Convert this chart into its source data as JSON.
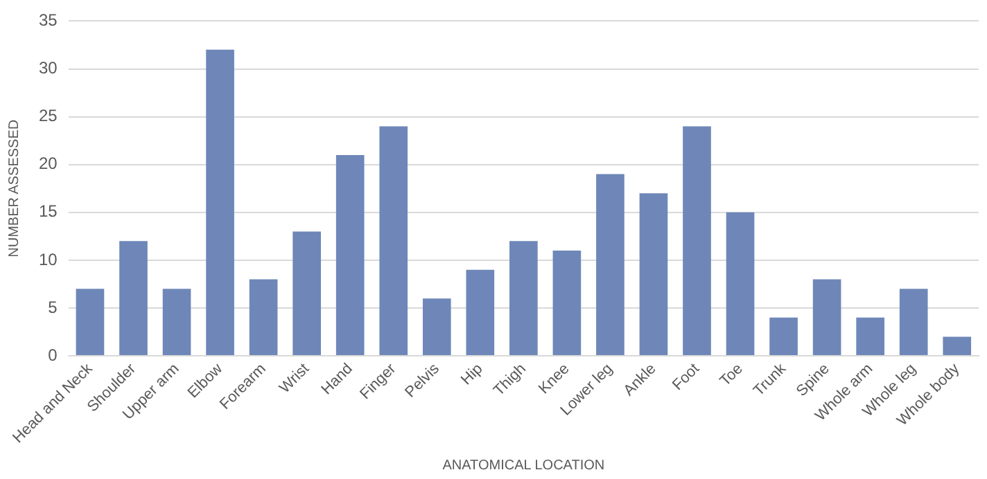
{
  "chart_data": {
    "type": "bar",
    "xlabel": "ANATOMICAL LOCATION",
    "ylabel": "NUMBER ASSESSED",
    "categories": [
      "Head and Neck",
      "Shoulder",
      "Upper arm",
      "Elbow",
      "Forearm",
      "Wrist",
      "Hand",
      "Finger",
      "Pelvis",
      "Hip",
      "Thigh",
      "Knee",
      "Lower leg",
      "Ankle",
      "Foot",
      "Toe",
      "Trunk",
      "Spine",
      "Whole arm",
      "Whole leg",
      "Whole body"
    ],
    "values": [
      7,
      12,
      7,
      32,
      8,
      13,
      21,
      24,
      6,
      9,
      12,
      11,
      19,
      17,
      24,
      15,
      4,
      8,
      4,
      7,
      2
    ],
    "color": "#6e87b8",
    "ylim": [
      0,
      35
    ],
    "yticks": [
      0,
      5,
      10,
      15,
      20,
      25,
      30,
      35
    ],
    "grid": "y",
    "legend": false
  }
}
